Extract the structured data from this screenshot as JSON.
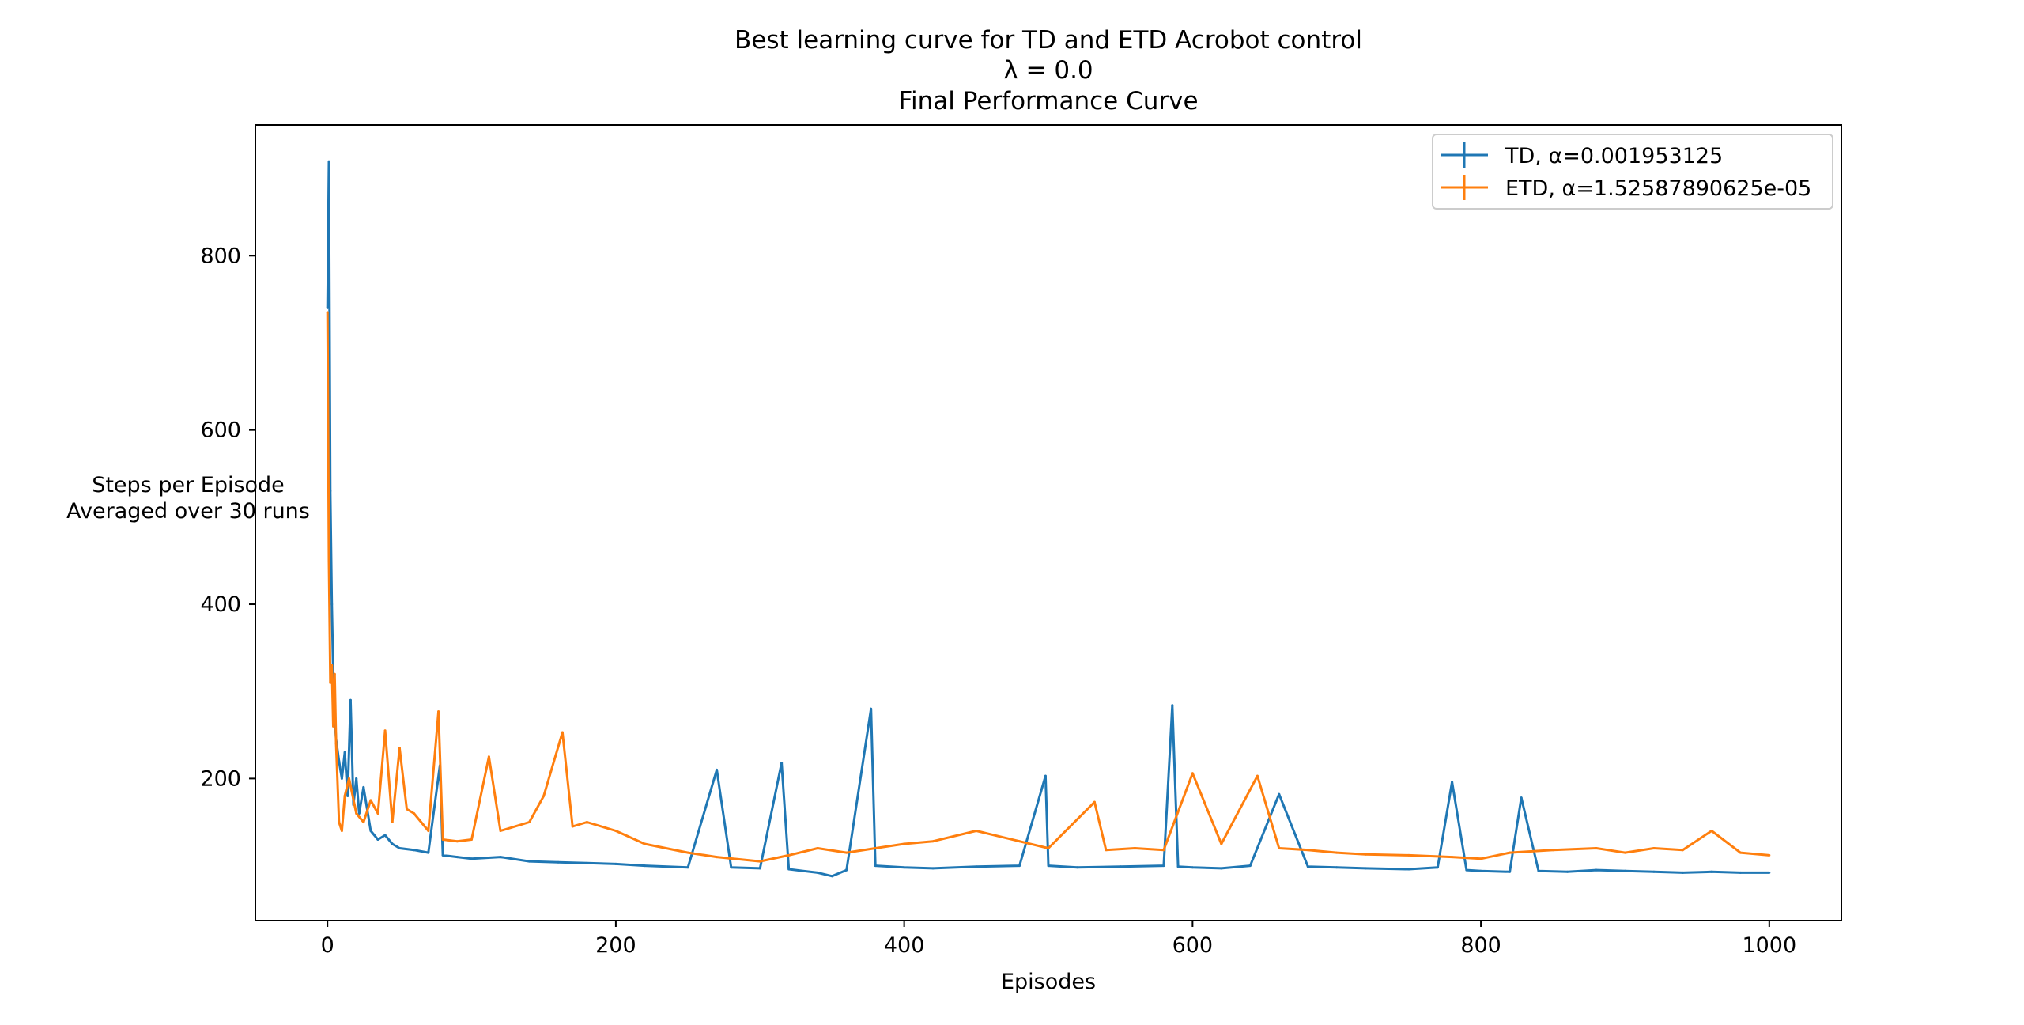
{
  "chart_data": {
    "type": "line",
    "title": "Best learning curve for TD and ETD Acrobot control",
    "subtitle_lines": [
      "λ = 0.0",
      "Final Performance Curve"
    ],
    "xlabel": "Episodes",
    "ylabel_lines": [
      "Steps per Episode",
      "Averaged over 30 runs"
    ],
    "xlim": [
      -50,
      1050
    ],
    "ylim": [
      37,
      950
    ],
    "xticks": [
      0,
      200,
      400,
      600,
      800,
      1000
    ],
    "yticks": [
      200,
      400,
      600,
      800
    ],
    "grid": false,
    "legend_position": "top-right",
    "series": [
      {
        "name": "TD, α=0.001953125",
        "color": "#1f77b4",
        "x": [
          0,
          1,
          2,
          3,
          4,
          5,
          6,
          8,
          10,
          12,
          14,
          16,
          18,
          20,
          22,
          25,
          30,
          35,
          40,
          45,
          50,
          60,
          70,
          78,
          80,
          90,
          100,
          120,
          140,
          160,
          180,
          200,
          220,
          250,
          270,
          280,
          300,
          315,
          320,
          340,
          350,
          360,
          377,
          380,
          400,
          420,
          450,
          480,
          498,
          500,
          520,
          550,
          580,
          586,
          590,
          600,
          620,
          640,
          660,
          680,
          700,
          720,
          750,
          770,
          780,
          790,
          800,
          820,
          828,
          840,
          860,
          880,
          900,
          920,
          940,
          960,
          980,
          1000
        ],
        "values": [
          740,
          908,
          530,
          400,
          320,
          270,
          245,
          220,
          200,
          230,
          180,
          290,
          170,
          200,
          160,
          190,
          140,
          130,
          135,
          125,
          120,
          118,
          115,
          215,
          112,
          110,
          108,
          110,
          105,
          104,
          103,
          102,
          100,
          98,
          210,
          98,
          97,
          218,
          96,
          92,
          88,
          95,
          280,
          100,
          98,
          97,
          99,
          100,
          203,
          100,
          98,
          99,
          100,
          284,
          99,
          98,
          97,
          100,
          182,
          99,
          98,
          97,
          96,
          98,
          196,
          95,
          94,
          93,
          178,
          94,
          93,
          95,
          94,
          93,
          92,
          93,
          92,
          92
        ]
      },
      {
        "name": "ETD, α=1.52587890625e-05",
        "color": "#ff7f0e",
        "x": [
          0,
          1,
          2,
          3,
          4,
          5,
          6,
          8,
          10,
          12,
          15,
          20,
          25,
          30,
          35,
          40,
          45,
          50,
          55,
          60,
          70,
          77,
          80,
          90,
          100,
          112,
          120,
          140,
          150,
          163,
          170,
          180,
          200,
          220,
          250,
          270,
          300,
          320,
          340,
          360,
          380,
          400,
          420,
          450,
          480,
          500,
          532,
          540,
          560,
          580,
          600,
          620,
          645,
          660,
          680,
          700,
          720,
          750,
          780,
          800,
          820,
          850,
          880,
          900,
          920,
          940,
          960,
          980,
          1000
        ],
        "values": [
          735,
          450,
          310,
          330,
          260,
          320,
          240,
          150,
          140,
          180,
          200,
          160,
          150,
          175,
          160,
          255,
          150,
          235,
          165,
          160,
          140,
          277,
          130,
          128,
          130,
          225,
          140,
          150,
          180,
          253,
          145,
          150,
          140,
          125,
          115,
          110,
          105,
          112,
          120,
          115,
          120,
          125,
          128,
          140,
          128,
          120,
          173,
          118,
          120,
          118,
          206,
          125,
          203,
          120,
          118,
          115,
          113,
          112,
          110,
          108,
          115,
          118,
          120,
          115,
          120,
          118,
          140,
          115,
          112
        ]
      }
    ]
  }
}
